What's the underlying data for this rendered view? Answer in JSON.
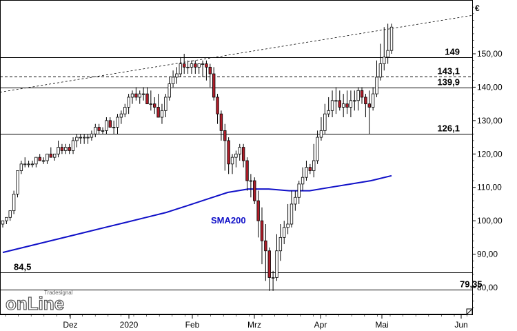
{
  "chart_data": {
    "type": "candlestick",
    "y_axis": {
      "currency": "€",
      "ylim": [
        72,
        168
      ],
      "ticks": [
        "80,00",
        "90,00",
        "100,00",
        "110,00",
        "120,00",
        "130,00",
        "140,00",
        "150,00"
      ]
    },
    "x_axis": {
      "ticks": [
        "Dez",
        "2020",
        "Feb",
        "Mrz",
        "Apr",
        "Mai",
        "Jun"
      ]
    },
    "horizontal_levels": [
      {
        "label": "149",
        "value": 149,
        "style": "solid"
      },
      {
        "label": "143,1",
        "value": 143.1,
        "style": "dashed"
      },
      {
        "label": "139,9",
        "value": 139.9,
        "style": "solid"
      },
      {
        "label": "126,1",
        "value": 126.1,
        "style": "solid"
      },
      {
        "label": "84,5",
        "value": 84.5,
        "style": "solid"
      },
      {
        "label": "79,35",
        "value": 79.35,
        "style": "solid"
      }
    ],
    "trendline": {
      "style": "dashed",
      "start_value": 138.5,
      "end_value": 161.5
    },
    "sma": {
      "label": "SMA200",
      "color": "#1010c8",
      "values": [
        90.5,
        92,
        93.5,
        95,
        96.5,
        98,
        99.5,
        101,
        102.5,
        104.5,
        106.5,
        108.5,
        109.5,
        109.5,
        109,
        109,
        110,
        111,
        112,
        113.5
      ]
    },
    "candles": {
      "colors": {
        "up": "#ffffff",
        "down": "#b01e2a"
      },
      "open": [
        99,
        100,
        101,
        103,
        108,
        115,
        117,
        117,
        117,
        117,
        119,
        118,
        118,
        120,
        119,
        120,
        122,
        121,
        122,
        121,
        124,
        125,
        125,
        125,
        125,
        126,
        128,
        127,
        127,
        130,
        128,
        128,
        131,
        132,
        134,
        137,
        138,
        137,
        138,
        138,
        135,
        135,
        134,
        131,
        133,
        137,
        141,
        143,
        144,
        147,
        146,
        146,
        147,
        146,
        147,
        147,
        146,
        144,
        137,
        132,
        127,
        124,
        117,
        119,
        120,
        122,
        118,
        112,
        112,
        106,
        100,
        94,
        91,
        83,
        83,
        91,
        95,
        98,
        99,
        105,
        107,
        111,
        113,
        116,
        115,
        118,
        125,
        127,
        132,
        133,
        136,
        136,
        134,
        135,
        134,
        136,
        136,
        139,
        137,
        135,
        134,
        138,
        143,
        147,
        149,
        151
      ],
      "high": [
        100,
        101,
        103,
        109,
        115,
        118,
        119,
        118,
        118,
        119,
        120,
        119,
        120,
        122,
        120,
        124,
        123,
        123,
        123,
        125,
        126,
        126,
        126,
        126,
        127,
        129,
        129,
        128,
        131,
        131,
        130,
        132,
        133,
        135,
        138,
        139,
        140,
        139,
        140,
        140,
        139,
        137,
        138,
        135,
        138,
        143,
        145,
        146,
        149,
        150,
        148,
        148,
        148,
        147,
        148,
        148,
        147,
        146,
        138,
        133,
        129,
        125,
        120,
        121,
        123,
        123,
        119,
        114,
        113,
        109,
        104,
        99,
        92,
        85,
        96,
        99,
        100,
        105,
        109,
        109,
        112,
        116,
        118,
        117,
        123,
        127,
        131,
        135,
        137,
        139,
        140,
        139,
        138,
        139,
        139,
        139,
        140,
        140,
        138,
        139,
        140,
        148,
        153,
        158,
        159,
        159
      ],
      "low": [
        98,
        99,
        100,
        102,
        107,
        114,
        116,
        116,
        116,
        116,
        118,
        117,
        117,
        119,
        118,
        119,
        120,
        120,
        120,
        120,
        122,
        123,
        123,
        123,
        124,
        125,
        126,
        126,
        126,
        128,
        126,
        126,
        129,
        131,
        132,
        135,
        136,
        135,
        136,
        135,
        133,
        132,
        131,
        129,
        131,
        136,
        140,
        141,
        143,
        144,
        144,
        144,
        144,
        144,
        143,
        142,
        140,
        136,
        129,
        124,
        115,
        114,
        114,
        116,
        118,
        116,
        109,
        107,
        105,
        95,
        87,
        82,
        79,
        79,
        82,
        88,
        93,
        96,
        98,
        103,
        105,
        109,
        112,
        114,
        113,
        117,
        124,
        126,
        131,
        131,
        132,
        133,
        131,
        132,
        131,
        133,
        133,
        135,
        131,
        126,
        133,
        137,
        142,
        145,
        147,
        150
      ],
      "close": [
        100,
        101,
        103,
        108,
        115,
        117,
        117,
        117,
        117,
        119,
        118,
        118,
        120,
        119,
        120,
        122,
        121,
        122,
        121,
        124,
        125,
        125,
        125,
        125,
        126,
        128,
        127,
        127,
        130,
        128,
        128,
        131,
        132,
        134,
        137,
        138,
        137,
        138,
        138,
        135,
        135,
        134,
        131,
        133,
        137,
        141,
        143,
        144,
        147,
        146,
        146,
        147,
        146,
        147,
        147,
        146,
        144,
        137,
        132,
        127,
        124,
        117,
        119,
        120,
        122,
        118,
        112,
        112,
        106,
        100,
        94,
        91,
        83,
        83,
        91,
        95,
        98,
        99,
        105,
        107,
        111,
        113,
        116,
        115,
        118,
        125,
        127,
        132,
        133,
        136,
        136,
        134,
        135,
        134,
        136,
        136,
        139,
        137,
        135,
        134,
        138,
        143,
        147,
        149,
        151,
        158
      ]
    },
    "annotations": [
      "SMA200"
    ],
    "grid": false
  },
  "logo": {
    "name": "tradesignal-online-logo",
    "text": "onLine",
    "small_text": "Tradesignal"
  },
  "icons": {
    "corner": "resize-grip-icon"
  },
  "colors": {
    "axis": "#000000",
    "sma": "#1010c8",
    "down_candle": "#b01e2a"
  }
}
